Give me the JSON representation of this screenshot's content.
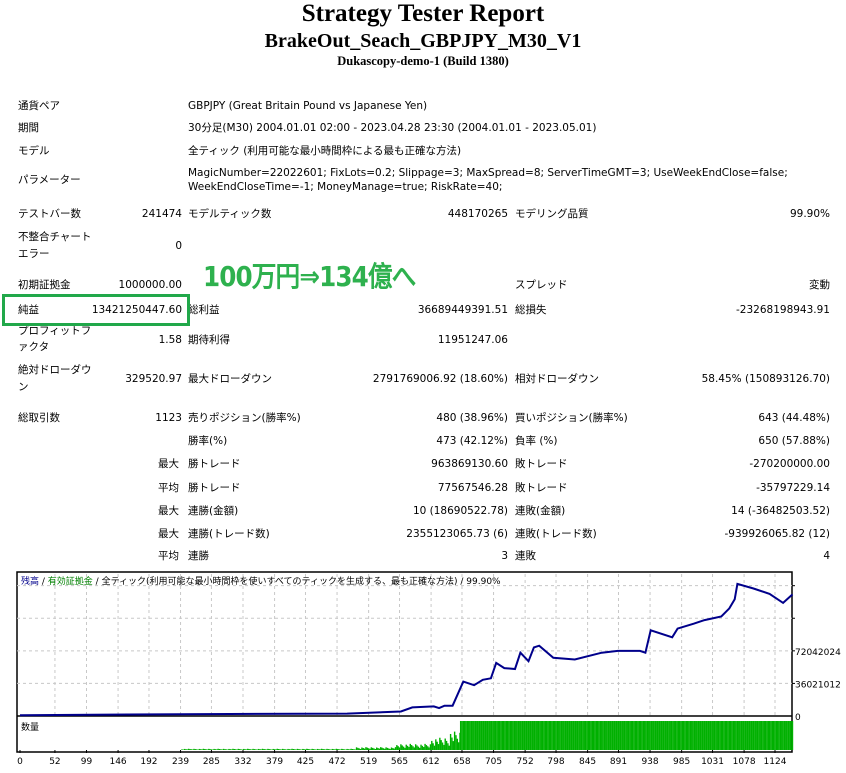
{
  "header": {
    "title": "Strategy Tester Report",
    "subtitle": "BrakeOut_Seach_GBPJPY_M30_V1",
    "server": "Dukascopy-demo-1 (Build 1380)"
  },
  "info": {
    "symbol_label": "通貨ペア",
    "symbol": "GBPJPY (Great Britain Pound vs Japanese Yen)",
    "period_label": "期間",
    "period": "30分足(M30) 2004.01.01 02:00 - 2023.04.28 23:30 (2004.01.01 - 2023.05.01)",
    "model_label": "モデル",
    "model": "全ティック (利用可能な最小時間枠による最も正確な方法)",
    "params_label": "パラメーター",
    "params_line1": "MagicNumber=22022601; FixLots=0.2; Slippage=3; MaxSpread=8; ServerTimeGMT=3; UseWeekEndClose=false;",
    "params_line2": "WeekEndCloseTime=-1; MoneyManage=true; RiskRate=40;"
  },
  "stats": {
    "bars_label": "テストバー数",
    "bars": "241474",
    "ticks_label": "モデルティック数",
    "ticks": "448170265",
    "quality_label": "モデリング品質",
    "quality": "99.90%",
    "errors_label1": "不整合チャート",
    "errors_label2": "エラー",
    "errors": "0",
    "deposit_label": "初期証拠金",
    "deposit": "1000000.00",
    "spread_label": "スプレッド",
    "spread": "変動",
    "net_label": "純益",
    "net": "13421250447.60",
    "gross_profit_label": "総利益",
    "gross_profit": "36689449391.51",
    "gross_loss_label": "総損失",
    "gross_loss": "-23268198943.91",
    "pf_label1": "プロフィットフ",
    "pf_label2": "ァクタ",
    "pf": "1.58",
    "expected_label": "期待利得",
    "expected": "11951247.06",
    "abs_dd_label1": "絶対ドローダウ",
    "abs_dd_label2": "ン",
    "abs_dd": "329520.97",
    "max_dd_label": "最大ドローダウン",
    "max_dd": "2791769006.92 (18.60%)",
    "rel_dd_label": "相対ドローダウン",
    "rel_dd": "58.45% (150893126.70)",
    "trades_label": "総取引数",
    "trades": "1123",
    "short_label": "売りポジション(勝率%)",
    "short": "480 (38.96%)",
    "long_label": "買いポジション(勝率%)",
    "long": "643 (44.48%)",
    "win_label": "勝率(%)",
    "win": "473 (42.12%)",
    "loss_label": "負率 (%)",
    "loss": "650 (57.88%)",
    "largest": "最大",
    "largest_win_label": "勝トレード",
    "largest_win": "963869130.60",
    "largest_loss_label": "敗トレード",
    "largest_loss": "-270200000.00",
    "average": "平均",
    "avg_win_label": "勝トレード",
    "avg_win": "77567546.28",
    "avg_loss_label": "敗トレード",
    "avg_loss": "-35797229.14",
    "max1": "最大",
    "max_cons_wins_label": "連勝(金額)",
    "max_cons_wins": "10 (18690522.78)",
    "max_cons_losses_label": "連敗(金額)",
    "max_cons_losses": "14 (-36482503.52)",
    "max2": "最大",
    "max_cons_profit_label": "連勝(トレード数)",
    "max_cons_profit": "2355123065.73 (6)",
    "max_cons_loss_label": "連敗(トレード数)",
    "max_cons_loss": "-939926065.82 (12)",
    "avg2": "平均",
    "avg_cons_wins_label": "連勝",
    "avg_cons_wins": "3",
    "avg_cons_losses_label": "連敗",
    "avg_cons_losses": "4"
  },
  "annotation": {
    "text": "100万円⇒134億へ",
    "color": "#2eb14e"
  },
  "chart_data": {
    "type": "line",
    "legend": {
      "balance": "残高",
      "sep": " / ",
      "equity": "有効証拠金",
      "model": "全ティック(利用可能な最小時間枠を使いすべてのティックを生成する、最も正確な方法)",
      "quality": "99.90%"
    },
    "volume_label": "数量",
    "colors": {
      "balance": "#00008b",
      "equity": "#008000",
      "volume": "#00b000",
      "grid": "#c8c8c8"
    },
    "xticks": [
      0,
      52,
      99,
      146,
      192,
      239,
      285,
      332,
      379,
      425,
      472,
      519,
      565,
      612,
      658,
      705,
      752,
      798,
      845,
      891,
      938,
      985,
      1031,
      1078,
      1124
    ],
    "yticks": [
      {
        "v": 0,
        "label": "0"
      },
      {
        "v": 36021012,
        "label": "36021012"
      },
      {
        "v": 72042024,
        "label": "72042024"
      }
    ],
    "ylim": [
      0,
      157000000
    ],
    "xlim": [
      0,
      1150
    ],
    "grid": true,
    "balance": [
      [
        0,
        800000
      ],
      [
        236,
        2000000
      ],
      [
        487,
        2700000
      ],
      [
        567,
        5000000
      ],
      [
        584,
        9500000
      ],
      [
        616,
        10600000
      ],
      [
        624,
        8700000
      ],
      [
        632,
        11400000
      ],
      [
        644,
        11400000
      ],
      [
        660,
        38000000
      ],
      [
        676,
        34000000
      ],
      [
        689,
        40000000
      ],
      [
        701,
        41700000
      ],
      [
        709,
        58700000
      ],
      [
        721,
        53000000
      ],
      [
        737,
        52000000
      ],
      [
        745,
        70000000
      ],
      [
        757,
        60600000
      ],
      [
        765,
        75800000
      ],
      [
        773,
        77700000
      ],
      [
        794,
        64400000
      ],
      [
        826,
        62500000
      ],
      [
        866,
        70000000
      ],
      [
        890,
        72000000
      ],
      [
        923,
        72000000
      ],
      [
        931,
        70000000
      ],
      [
        939,
        94700000
      ],
      [
        971,
        87000000
      ],
      [
        979,
        96600000
      ],
      [
        1003,
        102000000
      ],
      [
        1019,
        106000000
      ],
      [
        1044,
        110000000
      ],
      [
        1056,
        119000000
      ],
      [
        1064,
        129000000
      ],
      [
        1068,
        146000000
      ],
      [
        1092,
        141000000
      ],
      [
        1116,
        135000000
      ],
      [
        1136,
        125000000
      ],
      [
        1150,
        134500000
      ]
    ],
    "volume_levels": [
      [
        0,
        240,
        0
      ],
      [
        240,
        500,
        0.03
      ],
      [
        500,
        560,
        0.07
      ],
      [
        560,
        612,
        0.15
      ],
      [
        612,
        640,
        0.3
      ],
      [
        640,
        655,
        0.45
      ],
      [
        655,
        1150,
        1.0
      ]
    ]
  }
}
